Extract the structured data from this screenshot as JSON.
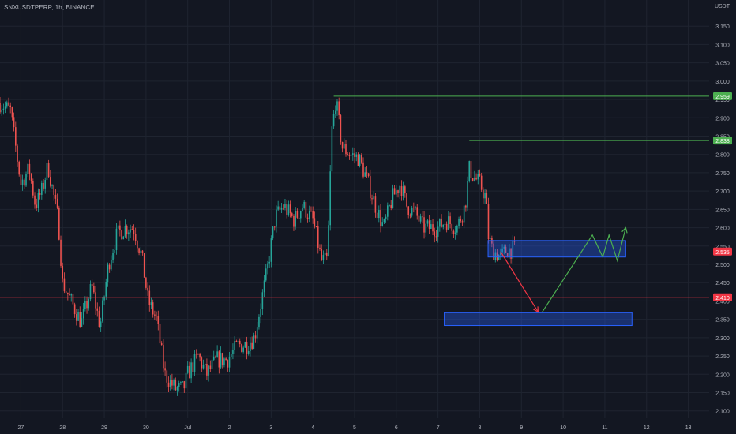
{
  "header": {
    "symbol_line": "SNXUSDTPERP, 1h, BINANCE",
    "currency": "USDT"
  },
  "chart_data": {
    "type": "candlestick",
    "symbol": "SNXUSDTPERP",
    "timeframe": "1h",
    "exchange": "BINANCE",
    "x_tick_labels": [
      "27",
      "28",
      "29",
      "30",
      "Jul",
      "2",
      "3",
      "4",
      "5",
      "6",
      "7",
      "8",
      "9",
      "10",
      "11",
      "12",
      "13"
    ],
    "y_ticks": [
      2.1,
      2.15,
      2.2,
      2.25,
      2.3,
      2.35,
      2.4,
      2.45,
      2.5,
      2.55,
      2.6,
      2.65,
      2.7,
      2.75,
      2.8,
      2.85,
      2.9,
      2.95,
      3.0,
      3.05,
      3.1,
      3.15
    ],
    "y_tick_labels": [
      "2.100",
      "2.150",
      "2.200",
      "2.250",
      "2.300",
      "2.350",
      "2.400",
      "2.450",
      "2.500",
      "2.550",
      "2.600",
      "2.650",
      "2.700",
      "2.750",
      "2.800",
      "2.850",
      "2.900",
      "2.950",
      "3.000",
      "3.050",
      "3.100",
      "3.150"
    ],
    "ylim": [
      2.08,
      3.2
    ],
    "price_path": [
      [
        26.5,
        2.94
      ],
      [
        26.75,
        2.92
      ],
      [
        27.0,
        2.72
      ],
      [
        27.2,
        2.76
      ],
      [
        27.35,
        2.66
      ],
      [
        27.5,
        2.7
      ],
      [
        27.65,
        2.77
      ],
      [
        27.9,
        2.62
      ],
      [
        28.0,
        2.45
      ],
      [
        28.2,
        2.4
      ],
      [
        28.45,
        2.34
      ],
      [
        28.7,
        2.44
      ],
      [
        28.9,
        2.33
      ],
      [
        29.1,
        2.5
      ],
      [
        29.3,
        2.58
      ],
      [
        29.5,
        2.6
      ],
      [
        29.7,
        2.6
      ],
      [
        29.9,
        2.52
      ],
      [
        30.05,
        2.4
      ],
      [
        30.25,
        2.35
      ],
      [
        30.45,
        2.2
      ],
      [
        30.7,
        2.16
      ],
      [
        30.9,
        2.16
      ],
      [
        31.0,
        2.2
      ],
      [
        31.25,
        2.25
      ],
      [
        31.45,
        2.2
      ],
      [
        31.7,
        2.24
      ],
      [
        31.95,
        2.24
      ],
      [
        32.2,
        2.28
      ],
      [
        32.4,
        2.28
      ],
      [
        32.6,
        2.3
      ],
      [
        32.9,
        2.48
      ],
      [
        33.1,
        2.63
      ],
      [
        33.3,
        2.66
      ],
      [
        33.55,
        2.62
      ],
      [
        33.75,
        2.66
      ],
      [
        34.0,
        2.62
      ],
      [
        34.1,
        2.57
      ],
      [
        34.2,
        2.51
      ],
      [
        34.35,
        2.51
      ],
      [
        34.45,
        2.86
      ],
      [
        34.55,
        2.95
      ],
      [
        34.7,
        2.82
      ],
      [
        34.9,
        2.8
      ],
      [
        35.1,
        2.79
      ],
      [
        35.3,
        2.73
      ],
      [
        35.5,
        2.66
      ],
      [
        35.7,
        2.6
      ],
      [
        35.9,
        2.68
      ],
      [
        36.1,
        2.72
      ],
      [
        36.25,
        2.66
      ],
      [
        36.45,
        2.64
      ],
      [
        36.65,
        2.6
      ],
      [
        37.0,
        2.6
      ],
      [
        37.2,
        2.62
      ],
      [
        37.45,
        2.6
      ],
      [
        37.65,
        2.66
      ],
      [
        37.75,
        2.76
      ],
      [
        37.85,
        2.74
      ],
      [
        38.0,
        2.72
      ],
      [
        38.15,
        2.68
      ],
      [
        38.2,
        2.58
      ],
      [
        38.3,
        2.54
      ],
      [
        38.5,
        2.52
      ],
      [
        38.65,
        2.54
      ],
      [
        38.85,
        2.54
      ]
    ],
    "horizontal_levels": [
      {
        "price": 2.959,
        "label": "2.959",
        "color": "#4caf50",
        "x_start": 34.5
      },
      {
        "price": 2.838,
        "label": "2.838",
        "color": "#4caf50",
        "x_start": 37.75
      },
      {
        "price": 2.535,
        "label": "2.535",
        "color": "#f23645",
        "x_start": null
      },
      {
        "price": 2.41,
        "label": "2.410",
        "color": "#f23645",
        "x_start": 26.5
      }
    ],
    "zones": [
      {
        "x0": 38.2,
        "x1": 41.5,
        "y_low": 2.52,
        "y_high": 2.565,
        "color": "#2962ff"
      },
      {
        "x0": 37.15,
        "x1": 41.65,
        "y_low": 2.333,
        "y_high": 2.368,
        "color": "#2962ff"
      }
    ],
    "projections": [
      {
        "color": "#f23645",
        "points": [
          [
            38.5,
            2.535
          ],
          [
            39.4,
            2.37
          ]
        ]
      },
      {
        "color": "#4caf50",
        "points": [
          [
            39.5,
            2.37
          ],
          [
            40.7,
            2.58
          ],
          [
            40.95,
            2.52
          ],
          [
            41.1,
            2.58
          ],
          [
            41.3,
            2.51
          ],
          [
            41.5,
            2.6
          ]
        ]
      }
    ],
    "accent_colors": {
      "up": "#26a69a",
      "down": "#ef5350",
      "background": "#131722",
      "grid": "#1f2430",
      "axis_text": "#b2b5be"
    }
  }
}
